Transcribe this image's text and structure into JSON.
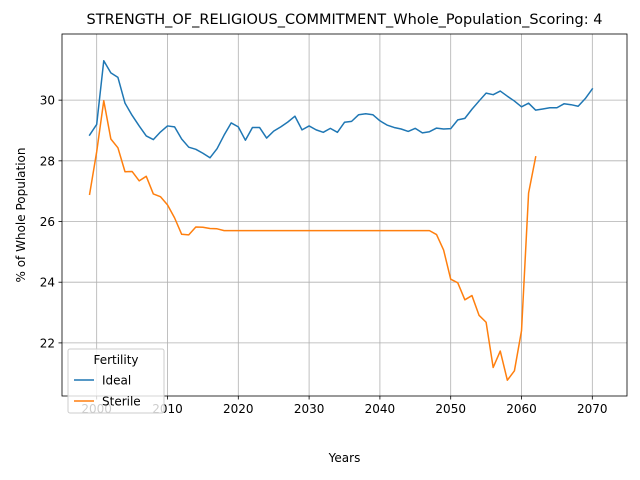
{
  "chart_data": {
    "type": "line",
    "title": "STRENGTH_OF_RELIGIOUS_COMMITMENT_Whole_Population_Scoring: 4",
    "xlabel": "Years",
    "ylabel": "% of Whole Population",
    "xlim": [
      1995.1,
      2074.9
    ],
    "ylim": [
      20.25,
      32.18
    ],
    "xticks": [
      2000,
      2010,
      2020,
      2030,
      2040,
      2050,
      2060,
      2070
    ],
    "yticks": [
      22,
      24,
      26,
      28,
      30
    ],
    "grid": true,
    "legend": {
      "title": "Fertility",
      "placement": "lower-left"
    },
    "series": [
      {
        "name": "Ideal",
        "color": "#1f77b4",
        "x": [
          1999,
          2000,
          2001,
          2002,
          2003,
          2004,
          2005,
          2006,
          2007,
          2008,
          2009,
          2010,
          2011,
          2012,
          2013,
          2014,
          2015,
          2016,
          2017,
          2018,
          2019,
          2020,
          2021,
          2022,
          2023,
          2024,
          2025,
          2026,
          2027,
          2028,
          2029,
          2030,
          2031,
          2032,
          2033,
          2034,
          2035,
          2036,
          2037,
          2038,
          2039,
          2040,
          2041,
          2042,
          2043,
          2044,
          2045,
          2046,
          2047,
          2048,
          2049,
          2050,
          2051,
          2052,
          2053,
          2054,
          2055,
          2056,
          2057,
          2058,
          2059,
          2060,
          2061,
          2062,
          2063,
          2064,
          2065,
          2066,
          2067,
          2068,
          2069,
          2070
        ],
        "values": [
          28.85,
          29.2,
          31.3,
          30.9,
          30.75,
          29.9,
          29.5,
          29.15,
          28.82,
          28.7,
          28.95,
          29.15,
          29.12,
          28.72,
          28.45,
          28.38,
          28.25,
          28.1,
          28.4,
          28.85,
          29.25,
          29.12,
          28.68,
          29.1,
          29.1,
          28.75,
          28.98,
          29.12,
          29.28,
          29.47,
          29.02,
          29.15,
          29.02,
          28.94,
          29.07,
          28.94,
          29.27,
          29.3,
          29.52,
          29.55,
          29.52,
          29.32,
          29.18,
          29.1,
          29.05,
          28.97,
          29.07,
          28.92,
          28.96,
          29.08,
          29.05,
          29.06,
          29.35,
          29.4,
          29.7,
          29.97,
          30.23,
          30.18,
          30.3,
          30.13,
          29.97,
          29.78,
          29.9,
          29.67,
          29.71,
          29.75,
          29.75,
          29.88,
          29.85,
          29.8,
          30.05,
          30.37
        ]
      },
      {
        "name": "Sterile",
        "color": "#ff7f0e",
        "x": [
          1999,
          2000,
          2001,
          2002,
          2003,
          2004,
          2005,
          2006,
          2007,
          2008,
          2009,
          2010,
          2011,
          2012,
          2013,
          2014,
          2015,
          2016,
          2017,
          2018,
          2019,
          2020,
          2021,
          2022,
          2023,
          2024,
          2025,
          2026,
          2027,
          2028,
          2029,
          2030,
          2031,
          2032,
          2033,
          2034,
          2035,
          2036,
          2037,
          2038,
          2039,
          2040,
          2041,
          2042,
          2043,
          2044,
          2045,
          2046,
          2047,
          2048,
          2049,
          2050,
          2051,
          2052,
          2053,
          2054,
          2055,
          2056,
          2057,
          2058,
          2059,
          2060,
          2061,
          2062
        ],
        "values": [
          26.9,
          28.3,
          29.98,
          28.72,
          28.43,
          27.64,
          27.65,
          27.34,
          27.49,
          26.91,
          26.82,
          26.55,
          26.12,
          25.58,
          25.56,
          25.82,
          25.81,
          25.77,
          25.76,
          25.7,
          25.7,
          25.7,
          25.7,
          25.7,
          25.7,
          25.7,
          25.7,
          25.7,
          25.7,
          25.7,
          25.7,
          25.7,
          25.7,
          25.7,
          25.7,
          25.7,
          25.7,
          25.7,
          25.7,
          25.7,
          25.7,
          25.7,
          25.7,
          25.7,
          25.7,
          25.7,
          25.7,
          25.7,
          25.7,
          25.57,
          25.06,
          24.1,
          23.98,
          23.42,
          23.56,
          22.91,
          22.68,
          21.19,
          21.73,
          20.77,
          21.08,
          22.4,
          26.94,
          28.13
        ]
      }
    ]
  }
}
